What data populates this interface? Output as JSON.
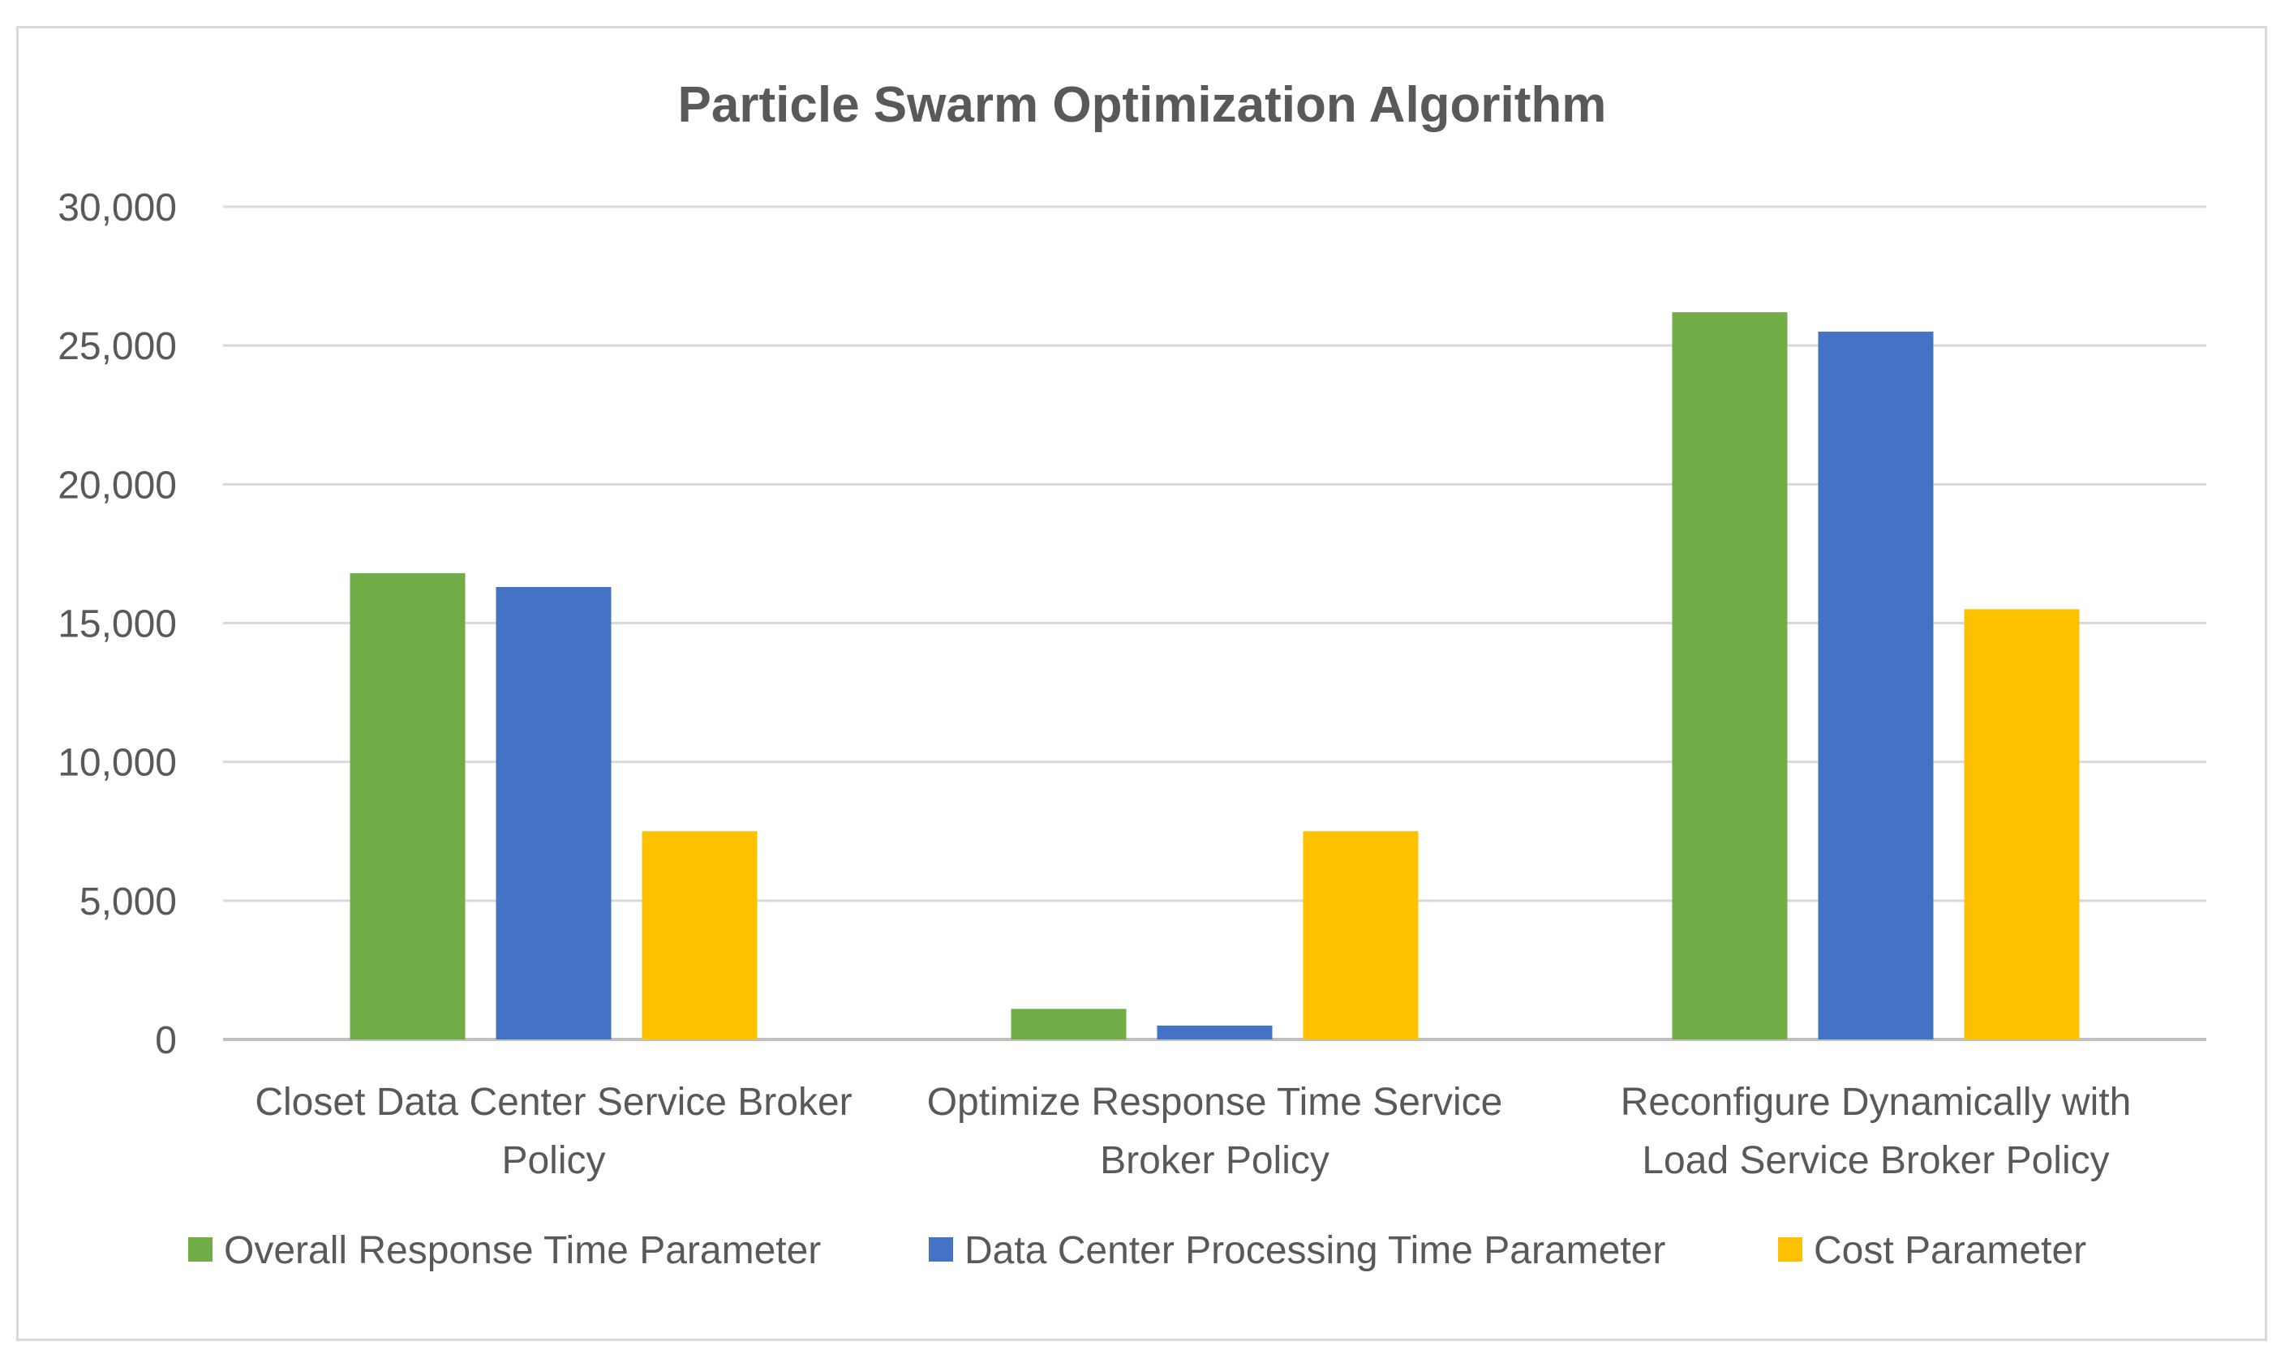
{
  "chart_data": {
    "type": "bar",
    "title": "Particle  Swarm Optimization Algorithm",
    "categories": [
      [
        "Closet Data Center Service Broker",
        "Policy"
      ],
      [
        "Optimize Response Time Service",
        "Broker Policy"
      ],
      [
        "Reconfigure Dynamically with",
        "Load Service Broker Policy"
      ]
    ],
    "series": [
      {
        "name": "Overall Response Time Parameter",
        "color": "#70ad47",
        "values": [
          16800,
          1100,
          26200
        ]
      },
      {
        "name": "Data Center Processing Time Parameter",
        "color": "#4472c4",
        "values": [
          16300,
          500,
          25500
        ]
      },
      {
        "name": "Cost Parameter",
        "color": "#ffc000",
        "values": [
          7500,
          7500,
          15500
        ]
      }
    ],
    "ylim": [
      0,
      30000
    ],
    "yticks": [
      0,
      5000,
      10000,
      15000,
      20000,
      25000,
      30000
    ],
    "ytick_labels": [
      "0",
      "5,000",
      "10,000",
      "15,000",
      "20,000",
      "25,000",
      "30,000"
    ],
    "xlabel": "",
    "ylabel": "",
    "grid": true,
    "legend_position": "bottom"
  }
}
